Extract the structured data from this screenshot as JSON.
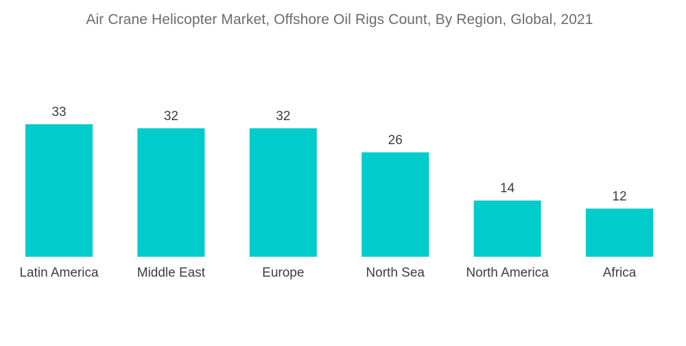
{
  "chart_data": {
    "type": "bar",
    "title": "Air Crane Helicopter Market, Offshore Oil Rigs Count, By Region, Global, 2021",
    "xlabel": "",
    "ylabel": "",
    "categories": [
      "Latin America",
      "Middle East",
      "Europe",
      "North Sea",
      "North America",
      "Africa"
    ],
    "values": [
      33,
      32,
      32,
      26,
      14,
      12
    ],
    "ylim": [
      0,
      33
    ],
    "grid": false,
    "legend": "none",
    "bar_color": "#00CCCC"
  }
}
